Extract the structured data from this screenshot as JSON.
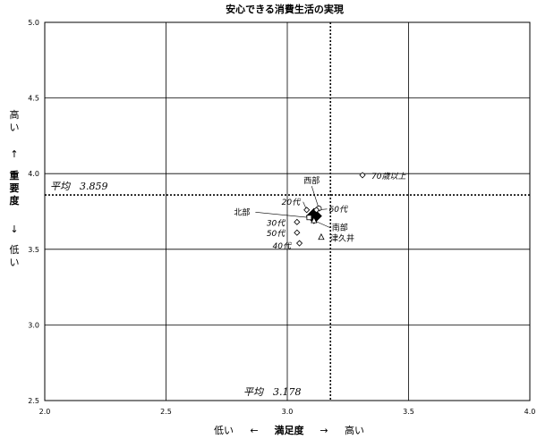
{
  "chart_data": {
    "type": "scatter",
    "title": "安心できる消費生活の実現",
    "xlim": [
      2.0,
      4.0
    ],
    "ylim": [
      2.5,
      5.0
    ],
    "xticks": [
      "2.0",
      "2.5",
      "3.0",
      "3.5",
      "4.0"
    ],
    "yticks": [
      "2.5",
      "3.0",
      "3.5",
      "4.0",
      "4.5",
      "5.0"
    ],
    "xticks_values": [
      2.0,
      2.5,
      3.0,
      3.5,
      4.0
    ],
    "yticks_values": [
      2.5,
      3.0,
      3.5,
      4.0,
      4.5,
      5.0
    ],
    "grid": true,
    "x_label": {
      "low": "低い",
      "arrow_left": "←",
      "name": "満足度",
      "arrow_right": "→",
      "high": "高い"
    },
    "y_label": {
      "high": "高い",
      "arrow_up": "↑",
      "name": "重要度",
      "arrow_down": "↓",
      "low": "低い"
    },
    "averages": {
      "x": 3.178,
      "y": 3.859,
      "x_label": "平均　3.178",
      "y_label": "平均　3.859"
    },
    "overall": {
      "x": 3.11,
      "y": 3.72
    },
    "points": [
      {
        "label": "70歳以上",
        "x": 3.31,
        "y": 3.99,
        "marker": "diamond",
        "italic": true
      },
      {
        "label": "西部",
        "x": 3.13,
        "y": 3.77,
        "marker": "circle",
        "italic": false
      },
      {
        "label": "20代",
        "x": 3.08,
        "y": 3.76,
        "marker": "diamond",
        "italic": true
      },
      {
        "label": "60代",
        "x": 3.12,
        "y": 3.76,
        "marker": "diamond",
        "italic": true
      },
      {
        "label": "北部",
        "x": 3.09,
        "y": 3.71,
        "marker": "square",
        "italic": false
      },
      {
        "label": "30代",
        "x": 3.04,
        "y": 3.68,
        "marker": "diamond",
        "italic": true
      },
      {
        "label": "南部",
        "x": 3.11,
        "y": 3.69,
        "marker": "triangle",
        "italic": false
      },
      {
        "label": "50代",
        "x": 3.04,
        "y": 3.61,
        "marker": "diamond",
        "italic": true
      },
      {
        "label": "津久井",
        "x": 3.14,
        "y": 3.58,
        "marker": "triangle",
        "italic": false
      },
      {
        "label": "40代",
        "x": 3.05,
        "y": 3.54,
        "marker": "diamond",
        "italic": true
      }
    ]
  }
}
